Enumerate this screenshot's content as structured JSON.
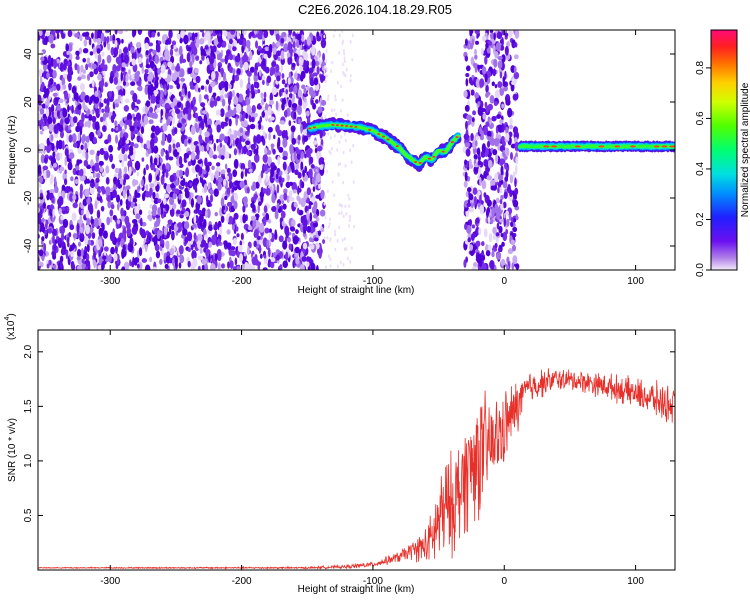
{
  "title": "C2E6.2026.104.18.29.R05",
  "chart_data": [
    {
      "type": "heatmap",
      "title": "C2E6.2026.104.18.29.R05",
      "xlabel": "Height of straight line (km)",
      "ylabel": "Frequency (Hz)",
      "xlim": [
        -355,
        130
      ],
      "ylim": [
        -50,
        50
      ],
      "x_ticks": [
        -300,
        -200,
        -100,
        0,
        100
      ],
      "y_ticks": [
        -40,
        -20,
        0,
        20,
        40
      ],
      "colorbar": {
        "label": "Normalized spectral amplitude",
        "range": [
          0.0,
          0.95
        ],
        "ticks": [
          0.0,
          0.2,
          0.4,
          0.6,
          0.8
        ],
        "colormap": [
          "#e6d5f5",
          "#8a2be2",
          "#3a00ff",
          "#0050ff",
          "#00c8ff",
          "#00ffb0",
          "#20ff20",
          "#b0ff00",
          "#ffff00",
          "#ffa500",
          "#ff3030",
          "#ff1070"
        ]
      },
      "noise_regions_km": [
        [
          -355,
          -137
        ],
        [
          -30,
          10
        ]
      ],
      "signal_trace": {
        "x": [
          -148,
          -140,
          -130,
          -120,
          -110,
          -100,
          -95,
          -90,
          -85,
          -80,
          -75,
          -70,
          -65,
          -60,
          -55,
          -50,
          -45,
          -40,
          -35
        ],
        "y": [
          9,
          10,
          10.5,
          10,
          9.5,
          8,
          6.5,
          5,
          3,
          1,
          -2,
          -4,
          -6,
          -3,
          -4,
          0,
          -1,
          3,
          6
        ]
      },
      "flat_trace": {
        "x": [
          12,
          130
        ],
        "y": 1.5
      }
    },
    {
      "type": "line",
      "xlabel": "Height of straight line (km)",
      "ylabel": "SNR (10 * v/v)",
      "y_scale_label": "(x10",
      "y_scale_exponent": "4",
      "xlim": [
        -355,
        130
      ],
      "ylim": [
        0,
        2.2
      ],
      "x_ticks": [
        -300,
        -200,
        -100,
        0,
        100
      ],
      "y_ticks": [
        0.5,
        1.0,
        1.5,
        2.0
      ],
      "y_tick_labels": [
        "0.5",
        "1.0",
        "1.5",
        "2.0"
      ],
      "series": [
        {
          "name": "SNR",
          "color": "#e8302a",
          "envelope": {
            "x": [
              -355,
              -150,
              -120,
              -100,
              -80,
              -70,
              -60,
              -55,
              -50,
              -45,
              -40,
              -35,
              -30,
              -25,
              -20,
              -15,
              -10,
              -5,
              0,
              5,
              10,
              15,
              20,
              30,
              40,
              60,
              80,
              100,
              110,
              120,
              130
            ],
            "center": [
              0.02,
              0.02,
              0.03,
              0.05,
              0.12,
              0.18,
              0.22,
              0.28,
              0.45,
              0.55,
              0.6,
              0.7,
              0.85,
              0.95,
              1.05,
              1.1,
              1.15,
              1.2,
              1.3,
              1.4,
              1.5,
              1.62,
              1.68,
              1.72,
              1.75,
              1.73,
              1.68,
              1.62,
              1.58,
              1.54,
              1.5
            ],
            "spread": [
              0.005,
              0.01,
              0.02,
              0.03,
              0.06,
              0.1,
              0.2,
              0.3,
              0.5,
              0.55,
              0.55,
              0.6,
              0.6,
              0.65,
              0.7,
              0.6,
              0.5,
              0.45,
              0.4,
              0.35,
              0.3,
              0.2,
              0.18,
              0.15,
              0.12,
              0.12,
              0.14,
              0.16,
              0.18,
              0.2,
              0.2
            ]
          }
        }
      ]
    }
  ]
}
